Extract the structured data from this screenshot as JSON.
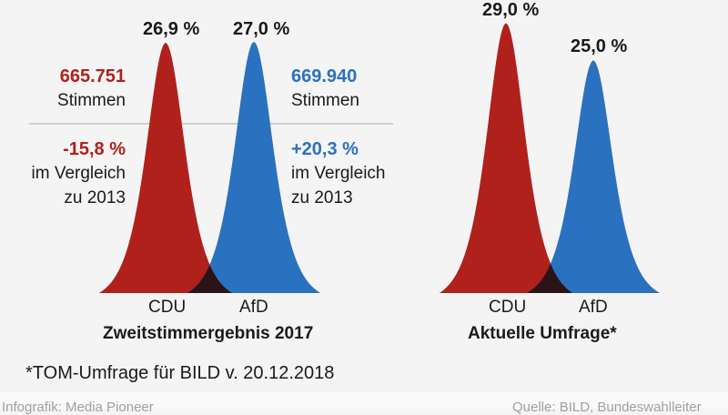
{
  "chart_data": [
    {
      "type": "area",
      "title": "Zweitstimmergebnis 2017",
      "categories": [
        "CDU",
        "AfD"
      ],
      "values": [
        26.9,
        27.0
      ],
      "value_labels": [
        "26,9 %",
        "27,0 %"
      ],
      "colors": [
        "#b0211c",
        "#2a72bf"
      ],
      "annotations": {
        "cdu": {
          "votes": "665.751",
          "votes_label": "Stimmen",
          "change": "-15,8 %",
          "change_label_1": "im Vergleich",
          "change_label_2": "zu 2013"
        },
        "afd": {
          "votes": "669.940",
          "votes_label": "Stimmen",
          "change": "+20,3 %",
          "change_label_1": "im Vergleich",
          "change_label_2": "zu 2013"
        }
      }
    },
    {
      "type": "area",
      "title": "Aktuelle Umfrage*",
      "categories": [
        "CDU",
        "AfD"
      ],
      "values": [
        29.0,
        25.0
      ],
      "value_labels": [
        "29,0 %",
        "25,0 %"
      ],
      "colors": [
        "#b0211c",
        "#2a72bf"
      ]
    }
  ],
  "overlap_color": "#2a1418",
  "footnote": "*TOM-Umfrage für BILD v. 20.12.2018",
  "credit": "Infografik: Media Pioneer",
  "source": "Quelle: BILD, Bundeswahlleiter"
}
